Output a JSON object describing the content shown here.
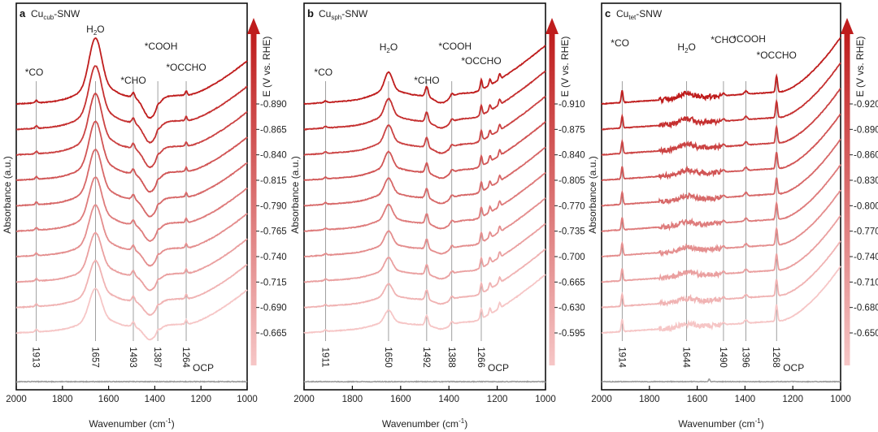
{
  "figure": {
    "colors": {
      "dark": "#bf1d1d",
      "light": "#f6c6c6",
      "ocp": "#9e9e9e",
      "guide": "#777777"
    }
  },
  "chart_data": [
    {
      "type": "line",
      "panel_letter": "a",
      "title_base": "Cu",
      "title_sub": "cub",
      "title_rest": "-SNW",
      "xlabel_base": "Wavenumber (cm",
      "xlabel_sup": "-1",
      "xlabel_end": ")",
      "ylabel": "Absorbance (a.u.)",
      "xlim": [
        2000,
        1000
      ],
      "x_ticks": [
        "2000",
        "1800",
        "1600",
        "1400",
        "1200",
        "1000"
      ],
      "colorbar_label": "E (V vs. RHE)",
      "potentials": [
        "-0.890",
        "-0.865",
        "-0.840",
        "-0.815",
        "-0.790",
        "-0.765",
        "-0.740",
        "-0.715",
        "-0.690",
        "-0.665"
      ],
      "ocp_label": "OCP",
      "peak_positions": [
        {
          "x": 1913,
          "label": "1913"
        },
        {
          "x": 1657,
          "label": "1657"
        },
        {
          "x": 1493,
          "label": "1493"
        },
        {
          "x": 1387,
          "label": "1387"
        },
        {
          "x": 1264,
          "label": "1264"
        }
      ],
      "species": [
        {
          "x": 1913,
          "label": "*CO"
        },
        {
          "x": 1657,
          "label": "H",
          "sub": "2",
          "end": "O"
        },
        {
          "x": 1493,
          "label": "*CHO"
        },
        {
          "x": 1387,
          "label": "*COOH"
        },
        {
          "x": 1264,
          "label": "*OCCHO"
        }
      ]
    },
    {
      "type": "line",
      "panel_letter": "b",
      "title_base": "Cu",
      "title_sub": "sph",
      "title_rest": "-SNW",
      "xlabel_base": "Wavenumber (cm",
      "xlabel_sup": "-1",
      "xlabel_end": ")",
      "ylabel": "Absorbance (a.u.)",
      "xlim": [
        2000,
        1000
      ],
      "x_ticks": [
        "2000",
        "1800",
        "1600",
        "1400",
        "1200",
        "1000"
      ],
      "colorbar_label": "E (V vs. RHE)",
      "potentials": [
        "-0.910",
        "-0.875",
        "-0.840",
        "-0.805",
        "-0.770",
        "-0.735",
        "-0.700",
        "-0.665",
        "-0.630",
        "-0.595"
      ],
      "ocp_label": "OCP",
      "peak_positions": [
        {
          "x": 1911,
          "label": "1911"
        },
        {
          "x": 1650,
          "label": "1650"
        },
        {
          "x": 1492,
          "label": "1492"
        },
        {
          "x": 1388,
          "label": "1388"
        },
        {
          "x": 1266,
          "label": "1266"
        }
      ],
      "species": [
        {
          "x": 1911,
          "label": "*CO"
        },
        {
          "x": 1650,
          "label": "H",
          "sub": "2",
          "end": "O"
        },
        {
          "x": 1492,
          "label": "*CHO"
        },
        {
          "x": 1388,
          "label": "*COOH"
        },
        {
          "x": 1266,
          "label": "*OCCHO"
        }
      ]
    },
    {
      "type": "line",
      "panel_letter": "c",
      "title_base": "Cu",
      "title_sub": "tet",
      "title_rest": "-SNW",
      "xlabel_base": "Wavenumber (cm",
      "xlabel_sup": "-1",
      "xlabel_end": ")",
      "ylabel": "Absorbance (a.u.)",
      "xlim": [
        2000,
        1000
      ],
      "x_ticks": [
        "2000",
        "1800",
        "1600",
        "1400",
        "1200",
        "1000"
      ],
      "colorbar_label": "E (V vs. RHE)",
      "potentials": [
        "-0.920",
        "-0.890",
        "-0.860",
        "-0.830",
        "-0.800",
        "-0.770",
        "-0.740",
        "-0.710",
        "-0.680",
        "-0.650"
      ],
      "ocp_label": "OCP",
      "peak_positions": [
        {
          "x": 1914,
          "label": "1914"
        },
        {
          "x": 1644,
          "label": "1644"
        },
        {
          "x": 1490,
          "label": "1490"
        },
        {
          "x": 1396,
          "label": "1396"
        },
        {
          "x": 1268,
          "label": "1268"
        }
      ],
      "species": [
        {
          "x": 1914,
          "label": "*CO"
        },
        {
          "x": 1644,
          "label": "H",
          "sub": "2",
          "end": "O"
        },
        {
          "x": 1490,
          "label": "*CHO"
        },
        {
          "x": 1396,
          "label": "*COOH"
        },
        {
          "x": 1268,
          "label": "*OCCHO"
        }
      ]
    }
  ]
}
